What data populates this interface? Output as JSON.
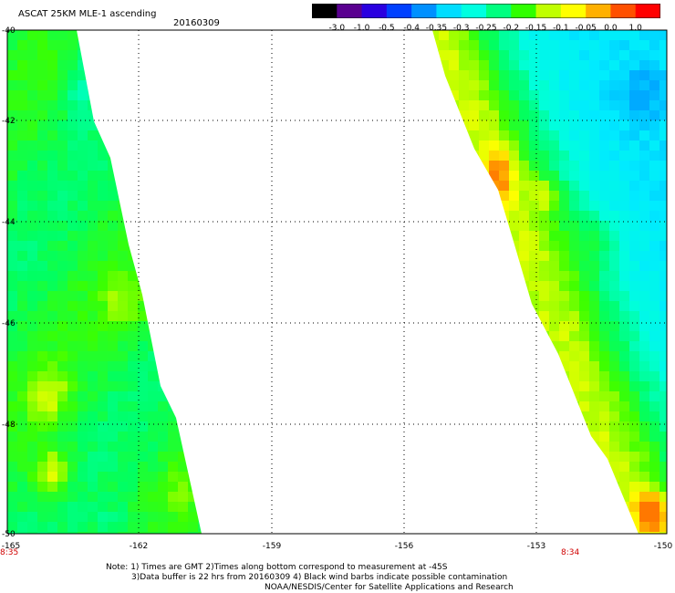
{
  "header": {
    "title": "ASCAT 25KM MLE-1 ascending",
    "date": "20160309"
  },
  "colorbar": {
    "ticks": [
      "-3.0",
      "-1.0",
      "-0.5",
      "-0.4",
      "-0.35",
      "-0.3",
      "-0.25",
      "-0.2",
      "-0.15",
      "-0.1",
      "-0.05",
      "0.0",
      "1.0"
    ],
    "colors": [
      "#000000",
      "#5a0090",
      "#2a00e0",
      "#0040ff",
      "#0090ff",
      "#00ddff",
      "#00ffe0",
      "#00ff80",
      "#30ff00",
      "#c0ff00",
      "#ffff00",
      "#ffb000",
      "#ff5000",
      "#ff0000"
    ]
  },
  "map": {
    "lat_labels": [
      "-40",
      "-42",
      "-44",
      "-46",
      "-48",
      "-50"
    ],
    "lon_labels": [
      "-165",
      "-162",
      "-159",
      "-156",
      "-153",
      "-150"
    ],
    "time_labels": {
      "left": "8:35",
      "right": "8:34"
    }
  },
  "notes": {
    "line1": "Note: 1) Times are GMT 2)Times along bottom correspond to measurement at -45S",
    "line2": "3)Data buffer is 22 hrs from 20160309 4) Black wind barbs indicate possible contamination",
    "line3": "NOAA/NESDIS/Center for Satellite Applications and Research"
  }
}
